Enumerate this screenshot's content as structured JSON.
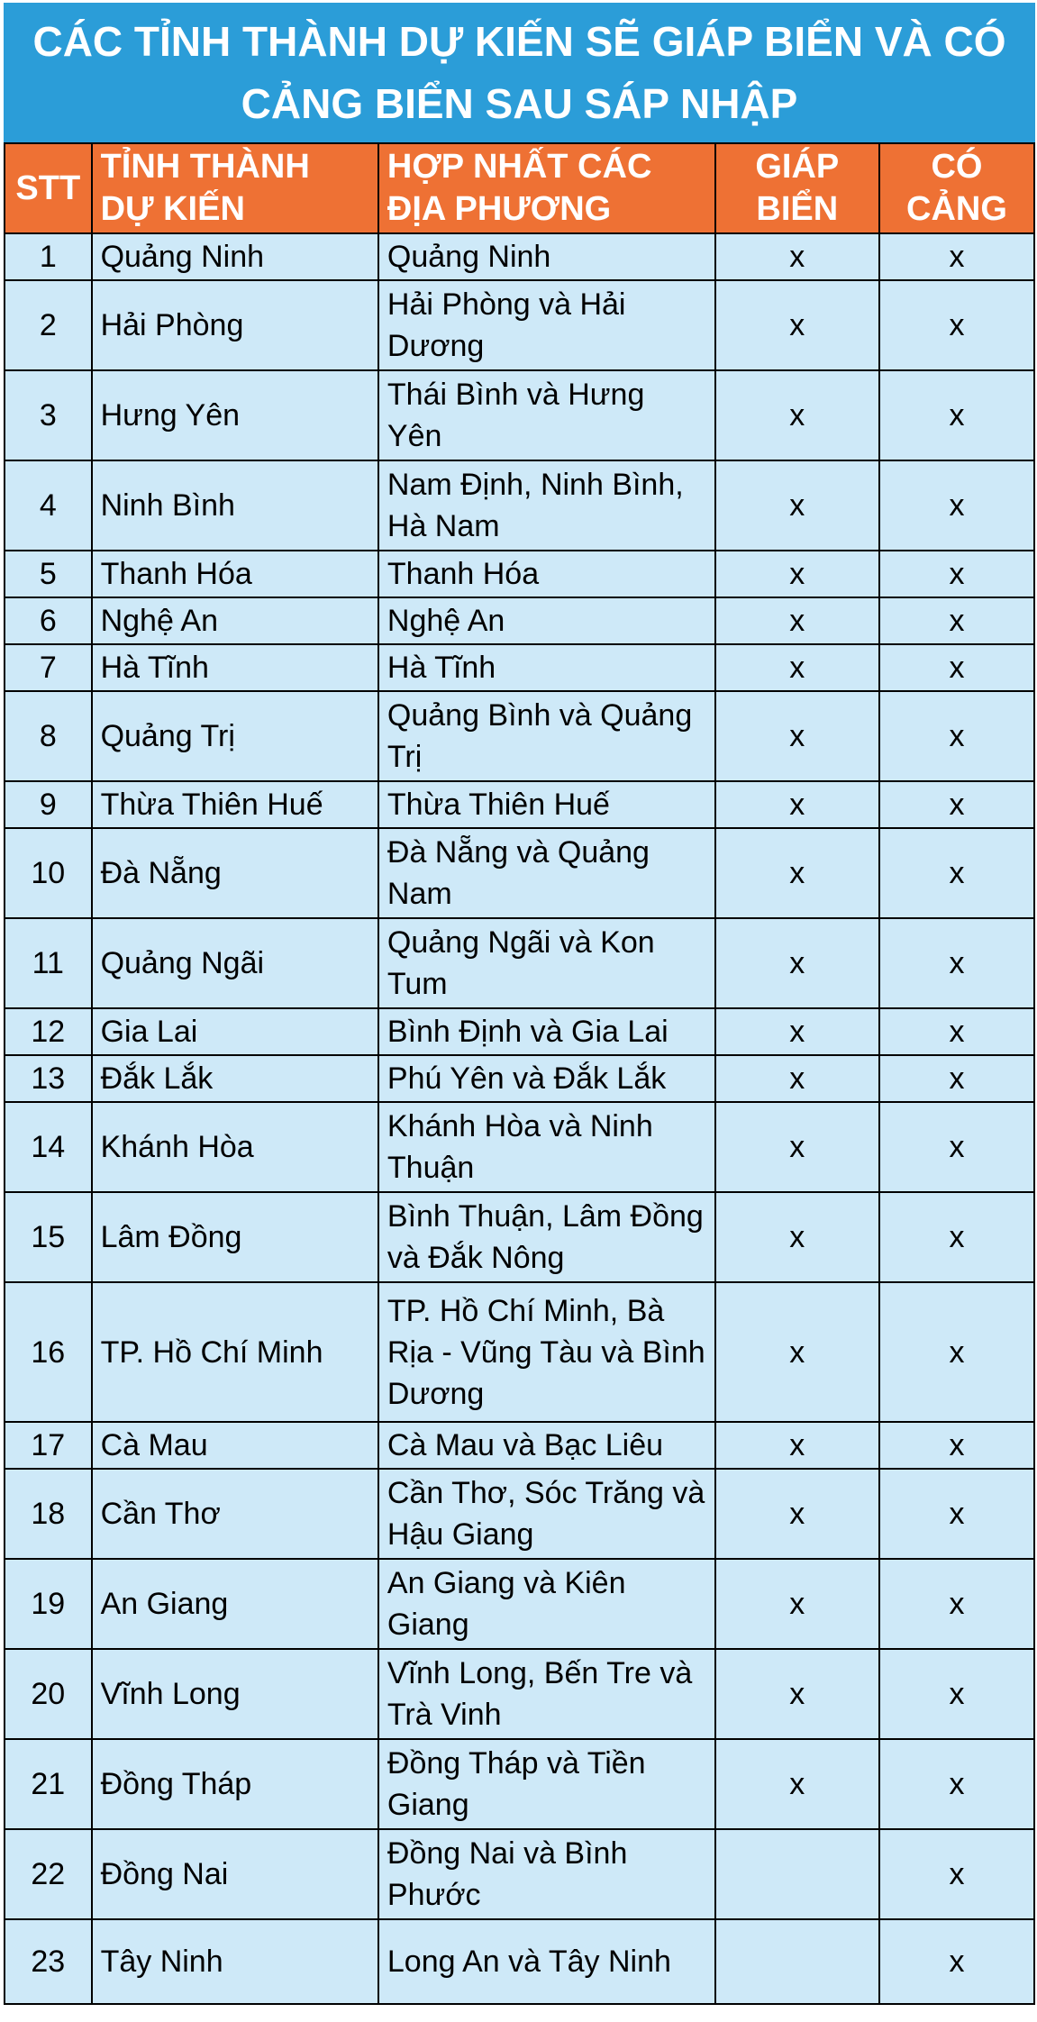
{
  "header": {
    "title": "CÁC TỈNH THÀNH DỰ KIẾN SẼ GIÁP BIỂN VÀ CÓ CẢNG BIỂN SAU SÁP NHẬP"
  },
  "colors": {
    "title_bg": "#2B9DD8",
    "title_text": "#FFFFFF",
    "header_bg": "#EE7134",
    "header_text": "#FFFFFF",
    "row_bg": "#CEE9F8",
    "body_text": "#000000",
    "border": "#000000"
  },
  "chart_data": {
    "type": "table",
    "title": "CÁC TỈNH THÀNH DỰ KIẾN SẼ GIÁP BIỂN VÀ CÓ CẢNG BIỂN SAU SÁP NHẬP",
    "columns": [
      "STT",
      "TỈNH THÀNH\nDỰ KIẾN",
      "HỢP NHẤT CÁC\nĐỊA PHƯƠNG",
      "GIÁP\nBIỂN",
      "CÓ\nCẢNG"
    ],
    "mark": "x",
    "rows": [
      [
        "1",
        "Quảng Ninh",
        "Quảng Ninh",
        "x",
        "x"
      ],
      [
        "2",
        "Hải Phòng",
        "Hải Phòng và Hải Dương",
        "x",
        "x"
      ],
      [
        "3",
        "Hưng Yên",
        "Thái Bình và Hưng Yên",
        "x",
        "x"
      ],
      [
        "4",
        "Ninh Bình",
        "Nam Định, Ninh Bình, Hà Nam",
        "x",
        "x"
      ],
      [
        "5",
        "Thanh Hóa",
        "Thanh Hóa",
        "x",
        "x"
      ],
      [
        "6",
        "Nghệ An",
        "Nghệ An",
        "x",
        "x"
      ],
      [
        "7",
        "Hà Tĩnh",
        "Hà Tĩnh",
        "x",
        "x"
      ],
      [
        "8",
        "Quảng Trị",
        "Quảng Bình và Quảng Trị",
        "x",
        "x"
      ],
      [
        "9",
        "Thừa Thiên Huế",
        "Thừa Thiên Huế",
        "x",
        "x"
      ],
      [
        "10",
        "Đà Nẵng",
        "Đà Nẵng và Quảng Nam",
        "x",
        "x"
      ],
      [
        "11",
        "Quảng Ngãi",
        "Quảng Ngãi và Kon Tum",
        "x",
        "x"
      ],
      [
        "12",
        "Gia Lai",
        "Bình Định và Gia Lai",
        "x",
        "x"
      ],
      [
        "13",
        "Đắk Lắk",
        "Phú Yên và Đắk Lắk",
        "x",
        "x"
      ],
      [
        "14",
        "Khánh Hòa",
        "Khánh Hòa và Ninh Thuận",
        "x",
        "x"
      ],
      [
        "15",
        "Lâm Đồng",
        "Bình Thuận, Lâm Đồng và Đắk Nông",
        "x",
        "x"
      ],
      [
        "16",
        "TP. Hồ Chí Minh",
        "TP. Hồ Chí Minh, Bà Rịa - Vũng Tàu và Bình Dương",
        "x",
        "x"
      ],
      [
        "17",
        "Cà Mau",
        "Cà Mau và Bạc Liêu",
        "x",
        "x"
      ],
      [
        "18",
        "Cần Thơ",
        "Cần Thơ, Sóc Trăng và Hậu Giang",
        "x",
        "x"
      ],
      [
        "19",
        "An Giang",
        "An Giang và Kiên Giang",
        "x",
        "x"
      ],
      [
        "20",
        "Vĩnh Long",
        "Vĩnh Long, Bến Tre và Trà Vinh",
        "x",
        "x"
      ],
      [
        "21",
        "Đồng Tháp",
        "Đồng Tháp và Tiền Giang",
        "x",
        "x"
      ],
      [
        "22",
        "Đồng Nai",
        "Đồng Nai và Bình Phước",
        "",
        "x"
      ],
      [
        "23",
        "Tây Ninh",
        "Long An và Tây Ninh",
        "",
        "x"
      ]
    ],
    "row_lines": [
      1,
      2,
      2,
      2,
      1,
      1,
      1,
      2,
      1,
      2,
      2,
      1,
      1,
      2,
      2,
      3,
      1,
      2,
      2,
      2,
      2,
      2,
      1
    ],
    "legend_position": "none",
    "grid": true
  }
}
